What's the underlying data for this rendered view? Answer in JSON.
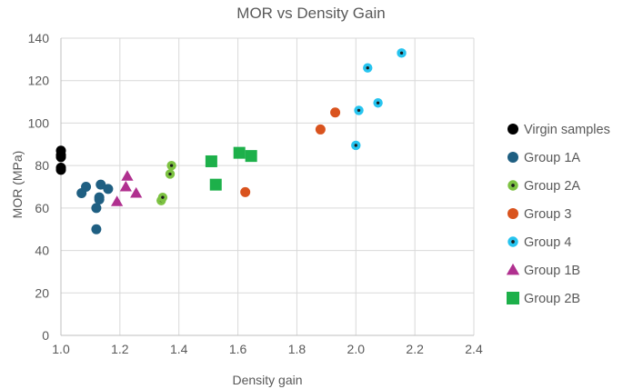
{
  "chart_data": {
    "type": "scatter",
    "title": "MOR vs Density Gain",
    "xlabel": "Density gain",
    "ylabel": "MOR (MPa)",
    "xlim": [
      1.0,
      2.4
    ],
    "ylim": [
      0,
      140
    ],
    "x_ticks": [
      1.0,
      1.2,
      1.4,
      1.6,
      1.8,
      2.0,
      2.2,
      2.4
    ],
    "x_tick_labels": [
      "1.0",
      "1.2",
      "1.4",
      "1.6",
      "1.8",
      "2.0",
      "2.2",
      "2.4"
    ],
    "y_ticks": [
      0,
      20,
      40,
      60,
      80,
      100,
      120,
      140
    ],
    "y_tick_labels": [
      "0",
      "20",
      "40",
      "60",
      "80",
      "100",
      "120",
      "140"
    ],
    "grid": true,
    "legend_position": "right",
    "series": [
      {
        "name": "Virgin samples",
        "marker": "circle",
        "color": "#000000",
        "points": [
          [
            1.0,
            87
          ],
          [
            1.0,
            85
          ],
          [
            1.0,
            84
          ],
          [
            1.0,
            79
          ],
          [
            1.0,
            78
          ]
        ]
      },
      {
        "name": "Group 1A",
        "marker": "circle",
        "color": "#1f5f82",
        "points": [
          [
            1.07,
            67
          ],
          [
            1.085,
            70
          ],
          [
            1.12,
            60
          ],
          [
            1.12,
            50
          ],
          [
            1.13,
            65
          ],
          [
            1.13,
            64
          ],
          [
            1.135,
            71
          ],
          [
            1.16,
            69
          ]
        ]
      },
      {
        "name": "Group 2A",
        "marker": "circle-dot",
        "color": "#7dc242",
        "points": [
          [
            1.34,
            63.5
          ],
          [
            1.345,
            65
          ],
          [
            1.37,
            76
          ],
          [
            1.375,
            80
          ]
        ]
      },
      {
        "name": "Group 3",
        "marker": "circle",
        "color": "#d9531e",
        "points": [
          [
            1.625,
            67.5
          ],
          [
            1.88,
            97
          ],
          [
            1.93,
            105
          ]
        ]
      },
      {
        "name": "Group 4",
        "marker": "circle-dot",
        "color": "#27c4ef",
        "points": [
          [
            2.0,
            89.5
          ],
          [
            2.01,
            106
          ],
          [
            2.04,
            126
          ],
          [
            2.075,
            109.5
          ],
          [
            2.155,
            133
          ]
        ]
      },
      {
        "name": "Group 1B",
        "marker": "triangle",
        "color": "#b0308f",
        "points": [
          [
            1.19,
            63
          ],
          [
            1.22,
            70
          ],
          [
            1.225,
            75
          ],
          [
            1.255,
            67
          ]
        ]
      },
      {
        "name": "Group 2B",
        "marker": "square",
        "color": "#1db04a",
        "points": [
          [
            1.51,
            82
          ],
          [
            1.525,
            71
          ],
          [
            1.605,
            86
          ],
          [
            1.645,
            84.5
          ]
        ]
      }
    ]
  }
}
